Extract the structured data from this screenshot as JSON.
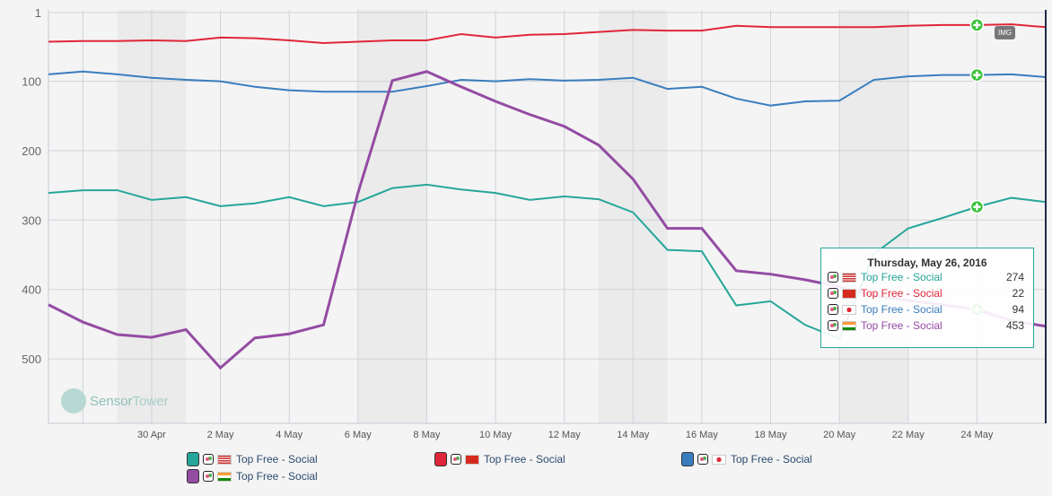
{
  "chart_data": {
    "type": "line",
    "title": "",
    "xlabel": "",
    "ylabel": "",
    "y_inverted": true,
    "ylim": [
      1,
      600
    ],
    "yticks": [
      "1",
      "100",
      "200",
      "300",
      "400",
      "500"
    ],
    "ytick_values": [
      1,
      100,
      200,
      300,
      400,
      500
    ],
    "x": [
      "2016-04-27",
      "2016-04-28",
      "2016-04-29",
      "2016-04-30",
      "2016-05-01",
      "2016-05-02",
      "2016-05-03",
      "2016-05-04",
      "2016-05-05",
      "2016-05-06",
      "2016-05-07",
      "2016-05-08",
      "2016-05-09",
      "2016-05-10",
      "2016-05-11",
      "2016-05-12",
      "2016-05-13",
      "2016-05-14",
      "2016-05-15",
      "2016-05-16",
      "2016-05-17",
      "2016-05-18",
      "2016-05-19",
      "2016-05-20",
      "2016-05-21",
      "2016-05-22",
      "2016-05-23",
      "2016-05-24",
      "2016-05-25",
      "2016-05-26"
    ],
    "xticks": [
      "30 Apr",
      "2 May",
      "4 May",
      "6 May",
      "8 May",
      "10 May",
      "12 May",
      "14 May",
      "16 May",
      "18 May",
      "20 May",
      "22 May",
      "24 May"
    ],
    "xtick_index": [
      3,
      5,
      7,
      9,
      11,
      13,
      15,
      17,
      19,
      21,
      23,
      25,
      27
    ],
    "weekend_bands": [
      [
        "2016-04-29",
        "2016-05-01"
      ],
      [
        "2016-05-06",
        "2016-05-08"
      ],
      [
        "2016-05-13",
        "2016-05-15"
      ],
      [
        "2016-05-20",
        "2016-05-22"
      ]
    ],
    "grid": true,
    "legend_position": "bottom",
    "series": [
      {
        "name": "Top Free - Social",
        "country": "US",
        "color": "#26a69a",
        "values": [
          261,
          257,
          257,
          271,
          267,
          280,
          276,
          267,
          280,
          274,
          254,
          249,
          256,
          261,
          271,
          266,
          270,
          289,
          343,
          345,
          423,
          417,
          451,
          471,
          349,
          312,
          297,
          281,
          268,
          274
        ]
      },
      {
        "name": "Top Free - Social",
        "country": "CN",
        "color": "#e0263a",
        "values": [
          43,
          42,
          42,
          41,
          42,
          37,
          38,
          41,
          45,
          43,
          41,
          41,
          32,
          37,
          33,
          32,
          29,
          26,
          27,
          27,
          20,
          22,
          22,
          22,
          22,
          20,
          19,
          19,
          18,
          22
        ]
      },
      {
        "name": "Top Free - Social",
        "country": "JP",
        "color": "#3a7dbf",
        "values": [
          90,
          86,
          90,
          95,
          98,
          100,
          108,
          113,
          115,
          115,
          115,
          107,
          98,
          100,
          97,
          99,
          98,
          95,
          111,
          108,
          125,
          135,
          129,
          128,
          98,
          93,
          91,
          91,
          90,
          94
        ]
      },
      {
        "name": "Top Free - Social",
        "country": "IN",
        "color": "#944ca3",
        "values": [
          422,
          447,
          465,
          469,
          458,
          513,
          470,
          464,
          451,
          261,
          99,
          86,
          108,
          129,
          148,
          165,
          192,
          241,
          312,
          312,
          373,
          378,
          386,
          396,
          409,
          416,
          422,
          429,
          445,
          453
        ]
      }
    ],
    "marker_index": 27
  },
  "tooltip": {
    "title": "Thursday, May 26, 2016",
    "rows": [
      {
        "label": "Top Free - Social",
        "value": "274"
      },
      {
        "label": "Top Free - Social",
        "value": "22"
      },
      {
        "label": "Top Free - Social",
        "value": "94"
      },
      {
        "label": "Top Free - Social",
        "value": "453"
      }
    ]
  },
  "legend": [
    {
      "label": "Top Free - Social"
    },
    {
      "label": "Top Free - Social"
    },
    {
      "label": "Top Free - Social"
    },
    {
      "label": "Top Free - Social"
    }
  ],
  "watermark": "SensorTower",
  "badge": "IMG"
}
